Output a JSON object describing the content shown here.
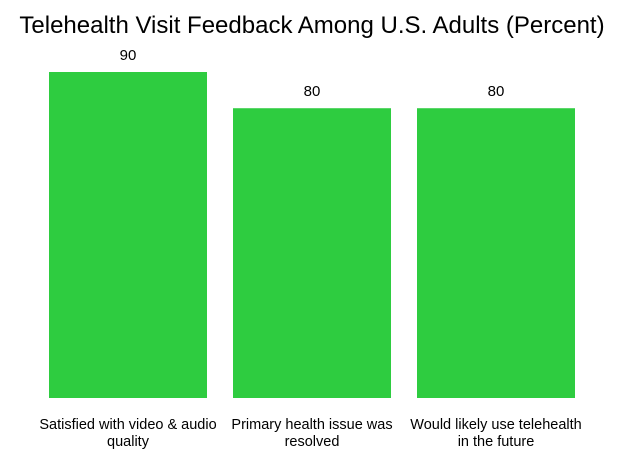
{
  "chart_data": {
    "type": "bar",
    "title": "Telehealth Visit Feedback Among U.S. Adults (Percent)",
    "categories": [
      [
        "Satisfied with video & audio",
        "quality"
      ],
      [
        "Primary health issue was",
        "resolved"
      ],
      [
        "Would likely use telehealth",
        "in the future"
      ]
    ],
    "values": [
      90,
      80,
      80
    ],
    "value_labels": [
      "90",
      "80",
      "80"
    ],
    "xlabel": "",
    "ylabel": "",
    "ylim": [
      0,
      90
    ],
    "grid": false,
    "bar_color": "#2ecc40"
  }
}
